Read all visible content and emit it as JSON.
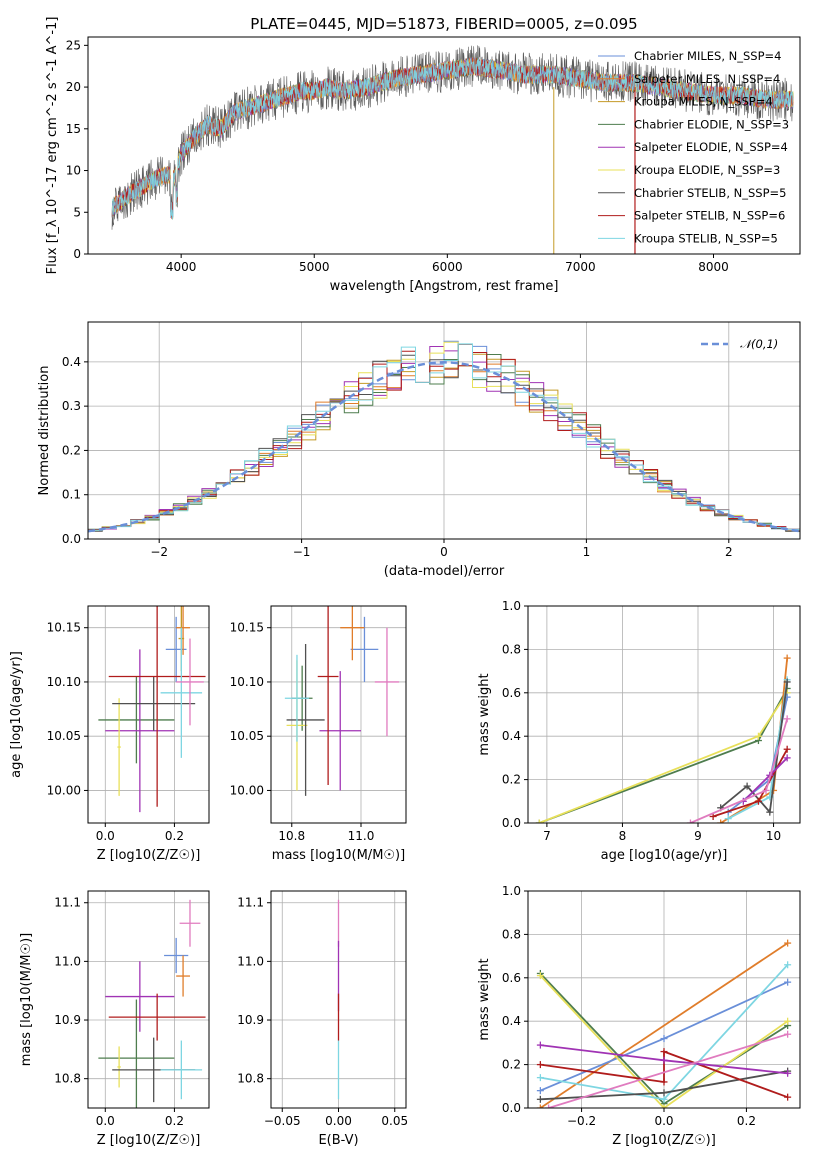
{
  "figure": {
    "title": "PLATE=0445, MJD=51873, FIBERID=0005, z=0.095"
  },
  "chart_data": [
    {
      "id": "spectrum",
      "type": "line",
      "xlabel": "wavelength [Angstrom, rest frame]",
      "ylabel": "Flux [f_λ 10^-17 erg cm^-2 s^-1 A^-1]",
      "xlim": [
        3300,
        8650
      ],
      "ylim": [
        0,
        26
      ],
      "xticks": [
        4000,
        5000,
        6000,
        7000,
        8000
      ],
      "yticks": [
        0,
        5,
        10,
        15,
        20,
        25
      ],
      "grid": false,
      "legend_position": "right",
      "legend": [
        {
          "name": "Chabrier MILES, N_SSP=4",
          "color": "#6a8fd8"
        },
        {
          "name": "Salpeter MILES, N_SSP=4",
          "color": "#e07d2b"
        },
        {
          "name": "Kroupa MILES, N_SSP=4",
          "color": "#c49a26"
        },
        {
          "name": "Chabrier ELODIE, N_SSP=3",
          "color": "#4e7d4e"
        },
        {
          "name": "Salpeter ELODIE, N_SSP=4",
          "color": "#a033b4"
        },
        {
          "name": "Kroupa ELODIE, N_SSP=3",
          "color": "#e8e05a"
        },
        {
          "name": "Chabrier STELIB, N_SSP=5",
          "color": "#505050"
        },
        {
          "name": "Salpeter STELIB, N_SSP=6",
          "color": "#b01c1c"
        },
        {
          "name": "Kroupa STELIB, N_SSP=5",
          "color": "#7ed6e2"
        }
      ],
      "continuum": {
        "x": [
          3480,
          3600,
          3700,
          3800,
          3900,
          3950,
          4000,
          4100,
          4200,
          4300,
          4400,
          4500,
          4600,
          4700,
          4800,
          4900,
          5000,
          5100,
          5200,
          5400,
          5600,
          5800,
          6000,
          6200,
          6400,
          6600,
          6800,
          7000,
          7200,
          7400,
          7600,
          7800,
          8000,
          8200,
          8400,
          8600
        ],
        "y": [
          5.5,
          7,
          8,
          9,
          9.5,
          9,
          12,
          14,
          15.5,
          15,
          17,
          17.5,
          18,
          18.5,
          19,
          19.5,
          19.5,
          20,
          19.5,
          20,
          21,
          21.5,
          22,
          22.5,
          22,
          21.5,
          21.5,
          21,
          20.5,
          20.5,
          20,
          19.5,
          19,
          19,
          18.5,
          18.5
        ]
      }
    },
    {
      "id": "residuals",
      "type": "histogram",
      "xlabel": "(data-model)/error",
      "ylabel": "Normed distribution",
      "xlim": [
        -2.5,
        2.5
      ],
      "ylim": [
        0,
        0.49
      ],
      "xticks": [
        -2,
        -1,
        0,
        1,
        2
      ],
      "yticks": [
        0.0,
        0.1,
        0.2,
        0.3,
        0.4
      ],
      "grid": true,
      "legend_position": "top-right",
      "legend": [
        {
          "name": "𝒩(0,1)",
          "color": "#6a8fd8"
        }
      ],
      "bin_width": 0.1
    },
    {
      "id": "age-vs-Z",
      "type": "scatter",
      "xlabel": "Z [log10(Z/Z☉)]",
      "ylabel": "age [log10(age/yr)]",
      "xlim": [
        -0.05,
        0.3
      ],
      "ylim": [
        9.97,
        10.17
      ],
      "xticks": [
        0.0,
        0.2
      ],
      "yticks": [
        10.0,
        10.05,
        10.1,
        10.15
      ],
      "grid": true,
      "points": [
        {
          "x": 0.205,
          "y": 10.13,
          "xerr": 0.03,
          "yerr": 0.03,
          "color": "#6a8fd8"
        },
        {
          "x": 0.225,
          "y": 10.15,
          "xerr": 0.02,
          "yerr": 0.025,
          "color": "#e07d2b"
        },
        {
          "x": 0.22,
          "y": 10.14,
          "xerr": 0.008,
          "yerr": 0.03,
          "color": "#c49a26"
        },
        {
          "x": 0.09,
          "y": 10.065,
          "xerr": 0.11,
          "yerr": 0.04,
          "color": "#4e7d4e"
        },
        {
          "x": 0.1,
          "y": 10.055,
          "xerr": 0.1,
          "yerr": 0.075,
          "color": "#a033b4"
        },
        {
          "x": 0.04,
          "y": 10.04,
          "xerr": 0.005,
          "yerr": 0.045,
          "color": "#e8e05a"
        },
        {
          "x": 0.14,
          "y": 10.08,
          "xerr": 0.12,
          "yerr": 0.025,
          "color": "#505050"
        },
        {
          "x": 0.15,
          "y": 10.105,
          "xerr": 0.14,
          "yerr": 0.12,
          "color": "#b01c1c"
        },
        {
          "x": 0.22,
          "y": 10.09,
          "xerr": 0.06,
          "yerr": 0.06,
          "color": "#7ed6e2"
        },
        {
          "x": 0.245,
          "y": 10.1,
          "xerr": 0.04,
          "yerr": 0.04,
          "color": "#e07bbf"
        }
      ]
    },
    {
      "id": "age-vs-mass",
      "type": "scatter",
      "xlabel": "mass [log10(M/M☉)]",
      "ylabel": "",
      "xlim": [
        10.74,
        11.13
      ],
      "ylim": [
        9.97,
        10.17
      ],
      "xticks": [
        10.8,
        11.0
      ],
      "yticks": [
        10.0,
        10.05,
        10.1,
        10.15
      ],
      "grid": true,
      "points": [
        {
          "x": 11.01,
          "y": 10.13,
          "xerr": 0.04,
          "yerr": 0.03,
          "color": "#6a8fd8"
        },
        {
          "x": 10.975,
          "y": 10.15,
          "xerr": 0.035,
          "yerr": 0.03,
          "color": "#e07d2b"
        },
        {
          "x": 10.83,
          "y": 10.085,
          "xerr": 0.03,
          "yerr": 0.03,
          "color": "#4e7d4e"
        },
        {
          "x": 10.94,
          "y": 10.055,
          "xerr": 0.06,
          "yerr": 0.055,
          "color": "#a033b4"
        },
        {
          "x": 10.815,
          "y": 10.06,
          "xerr": 0.03,
          "yerr": 0.06,
          "color": "#e8e05a"
        },
        {
          "x": 10.84,
          "y": 10.065,
          "xerr": 0.055,
          "yerr": 0.07,
          "color": "#505050"
        },
        {
          "x": 10.905,
          "y": 10.105,
          "xerr": 0.03,
          "yerr": 0.1,
          "color": "#b01c1c"
        },
        {
          "x": 10.815,
          "y": 10.085,
          "xerr": 0.035,
          "yerr": 0.04,
          "color": "#7ed6e2"
        },
        {
          "x": 11.075,
          "y": 10.1,
          "xerr": 0.035,
          "yerr": 0.05,
          "color": "#e07bbf"
        }
      ]
    },
    {
      "id": "massweight-vs-age",
      "type": "line",
      "xlabel": "age [log10(age/yr)]",
      "ylabel": "mass weight",
      "xlim": [
        6.75,
        10.35
      ],
      "ylim": [
        0,
        1
      ],
      "xticks": [
        7,
        8,
        9,
        10
      ],
      "yticks": [
        0.0,
        0.2,
        0.4,
        0.6,
        0.8,
        1.0
      ],
      "grid": true,
      "series": [
        {
          "color": "#4e7d4e",
          "x": [
            6.9,
            9.8,
            10.18
          ],
          "y": [
            0.0,
            0.38,
            0.62
          ]
        },
        {
          "color": "#e8e05a",
          "x": [
            6.9,
            9.8,
            10.18
          ],
          "y": [
            0.0,
            0.4,
            0.6
          ]
        },
        {
          "color": "#e07d2b",
          "x": [
            9.3,
            10.0,
            10.18
          ],
          "y": [
            0.0,
            0.15,
            0.76
          ]
        },
        {
          "color": "#6a8fd8",
          "x": [
            9.4,
            9.95,
            10.18
          ],
          "y": [
            0.05,
            0.2,
            0.58
          ]
        },
        {
          "color": "#7ed6e2",
          "x": [
            9.4,
            9.95,
            10.18
          ],
          "y": [
            0.02,
            0.12,
            0.66
          ]
        },
        {
          "color": "#505050",
          "x": [
            9.3,
            9.65,
            9.95,
            10.18
          ],
          "y": [
            0.07,
            0.17,
            0.05,
            0.65
          ]
        },
        {
          "color": "#b01c1c",
          "x": [
            9.2,
            9.8,
            10.18
          ],
          "y": [
            0.03,
            0.1,
            0.34
          ]
        },
        {
          "color": "#a033b4",
          "x": [
            9.6,
            9.95,
            10.18
          ],
          "y": [
            0.1,
            0.22,
            0.3
          ]
        },
        {
          "color": "#e07bbf",
          "x": [
            8.9,
            9.9,
            10.18
          ],
          "y": [
            0.0,
            0.15,
            0.48
          ]
        }
      ]
    },
    {
      "id": "mass-vs-Z",
      "type": "scatter",
      "xlabel": "Z [log10(Z/Z☉)]",
      "ylabel": "mass [log10(M/M☉)]",
      "xlim": [
        -0.05,
        0.3
      ],
      "ylim": [
        10.75,
        11.12
      ],
      "xticks": [
        0.0,
        0.2
      ],
      "yticks": [
        10.8,
        10.9,
        11.0,
        11.1
      ],
      "grid": true,
      "points": [
        {
          "x": 0.205,
          "y": 11.01,
          "xerr": 0.035,
          "yerr": 0.03,
          "color": "#6a8fd8"
        },
        {
          "x": 0.225,
          "y": 10.975,
          "xerr": 0.02,
          "yerr": 0.035,
          "color": "#e07d2b"
        },
        {
          "x": 0.09,
          "y": 10.835,
          "xerr": 0.11,
          "yerr": 0.1,
          "color": "#4e7d4e"
        },
        {
          "x": 0.1,
          "y": 10.94,
          "xerr": 0.1,
          "yerr": 0.06,
          "color": "#a033b4"
        },
        {
          "x": 0.04,
          "y": 10.82,
          "xerr": 0.005,
          "yerr": 0.035,
          "color": "#e8e05a"
        },
        {
          "x": 0.14,
          "y": 10.815,
          "xerr": 0.12,
          "yerr": 0.055,
          "color": "#505050"
        },
        {
          "x": 0.15,
          "y": 10.905,
          "xerr": 0.14,
          "yerr": 0.04,
          "color": "#b01c1c"
        },
        {
          "x": 0.22,
          "y": 10.815,
          "xerr": 0.06,
          "yerr": 0.05,
          "color": "#7ed6e2"
        },
        {
          "x": 0.245,
          "y": 11.065,
          "xerr": 0.03,
          "yerr": 0.04,
          "color": "#e07bbf"
        }
      ]
    },
    {
      "id": "mass-vs-EBV",
      "type": "scatter",
      "xlabel": "E(B-V)",
      "ylabel": "",
      "xlim": [
        -0.06,
        0.06
      ],
      "ylim": [
        10.75,
        11.12
      ],
      "xticks": [
        -0.05,
        0.0,
        0.05
      ],
      "yticks": [
        10.8,
        10.9,
        11.0,
        11.1
      ],
      "grid": true,
      "points": [
        {
          "x": 0.0,
          "y": 11.065,
          "xerr": 0,
          "yerr": 0.04,
          "color": "#e07bbf"
        },
        {
          "x": 0.0,
          "y": 10.975,
          "xerr": 0,
          "yerr": 0.06,
          "color": "#a033b4"
        },
        {
          "x": 0.0,
          "y": 10.905,
          "xerr": 0,
          "yerr": 0.04,
          "color": "#b01c1c"
        },
        {
          "x": 0.0,
          "y": 10.815,
          "xerr": 0,
          "yerr": 0.05,
          "color": "#7ed6e2"
        }
      ]
    },
    {
      "id": "massweight-vs-Z",
      "type": "line",
      "xlabel": "Z [log10(Z/Z☉)]",
      "ylabel": "mass weight",
      "xlim": [
        -0.33,
        0.33
      ],
      "ylim": [
        0,
        1
      ],
      "xticks": [
        -0.2,
        0.0,
        0.2
      ],
      "yticks": [
        0.0,
        0.2,
        0.4,
        0.6,
        0.8,
        1.0
      ],
      "grid": true,
      "series": [
        {
          "color": "#e07d2b",
          "x": [
            -0.3,
            0.3
          ],
          "y": [
            0.0,
            0.76
          ]
        },
        {
          "color": "#6a8fd8",
          "x": [
            -0.3,
            0.0,
            0.3
          ],
          "y": [
            0.08,
            0.32,
            0.58
          ]
        },
        {
          "color": "#4e7d4e",
          "x": [
            -0.3,
            0.0,
            0.3
          ],
          "y": [
            0.62,
            0.02,
            0.38
          ]
        },
        {
          "color": "#e8e05a",
          "x": [
            -0.3,
            0.0,
            0.3
          ],
          "y": [
            0.61,
            0.0,
            0.4
          ]
        },
        {
          "color": "#7ed6e2",
          "x": [
            -0.3,
            0.0,
            0.3
          ],
          "y": [
            0.14,
            0.04,
            0.66
          ]
        },
        {
          "color": "#505050",
          "x": [
            -0.3,
            0.0,
            0.3
          ],
          "y": [
            0.04,
            0.07,
            0.17
          ]
        },
        {
          "color": "#b01c1c",
          "x": [
            -0.3,
            0.0,
            0.0,
            0.3
          ],
          "y": [
            0.2,
            0.12,
            0.26,
            0.05
          ]
        },
        {
          "color": "#a033b4",
          "x": [
            -0.3,
            0.0,
            0.3
          ],
          "y": [
            0.29,
            0.22,
            0.16
          ]
        },
        {
          "color": "#e07bbf",
          "x": [
            -0.28,
            0.3
          ],
          "y": [
            0.0,
            0.34
          ]
        }
      ]
    }
  ]
}
